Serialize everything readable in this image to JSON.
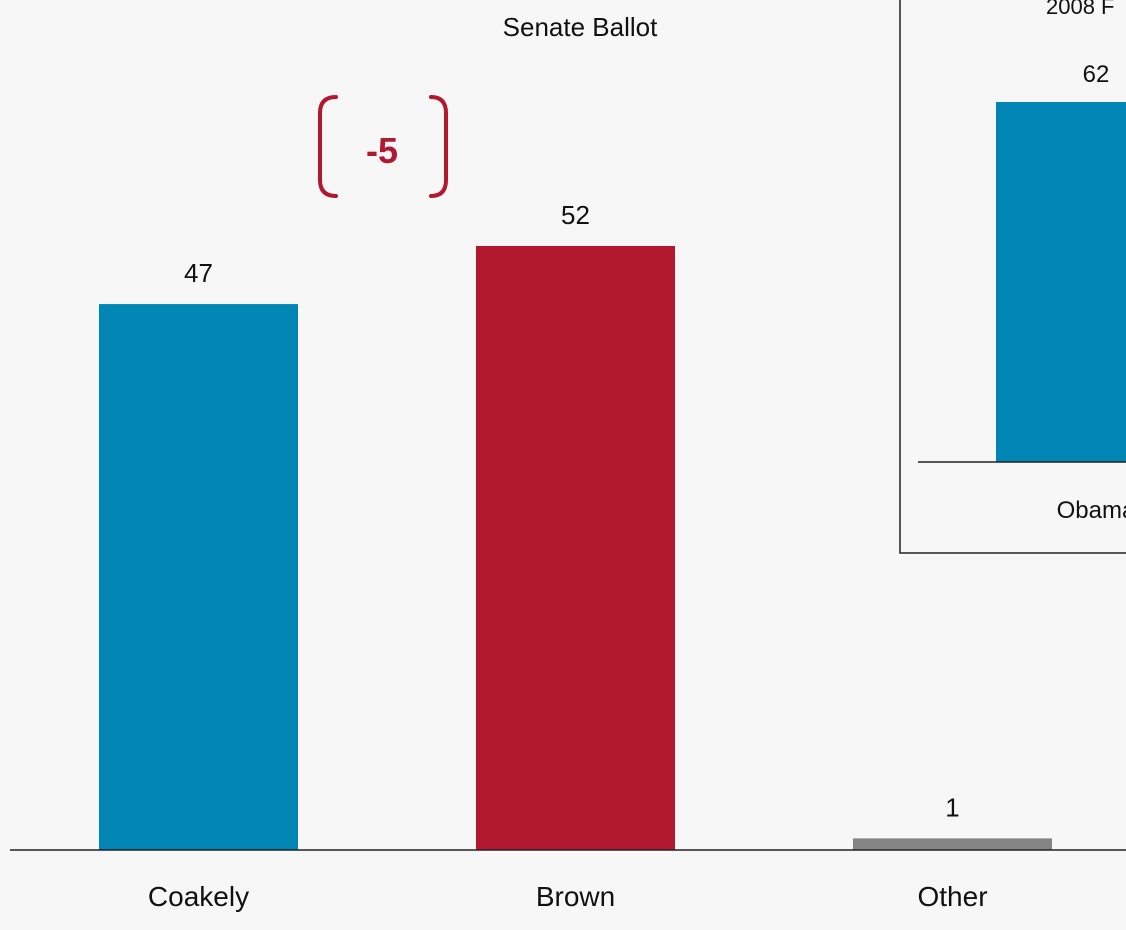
{
  "chart_data": [
    {
      "type": "bar",
      "title": "Senate Ballot",
      "categories": [
        "Coakely",
        "Brown",
        "Other"
      ],
      "values": [
        47,
        52,
        1
      ],
      "colors": [
        "#0085b5",
        "#b2182f",
        "#848484"
      ],
      "ylim": [
        0,
        52
      ],
      "grid": false,
      "annotation": {
        "text": "-5",
        "color": "#b2182f",
        "between": [
          "Coakely",
          "Brown"
        ]
      }
    },
    {
      "type": "bar",
      "title": "2008 F",
      "categories": [
        "Obama"
      ],
      "values": [
        62
      ],
      "colors": [
        "#0085b5"
      ],
      "grid": false
    }
  ],
  "colors": {
    "background": "#f7f7f7",
    "axis": "#222222",
    "text": "#111111"
  }
}
